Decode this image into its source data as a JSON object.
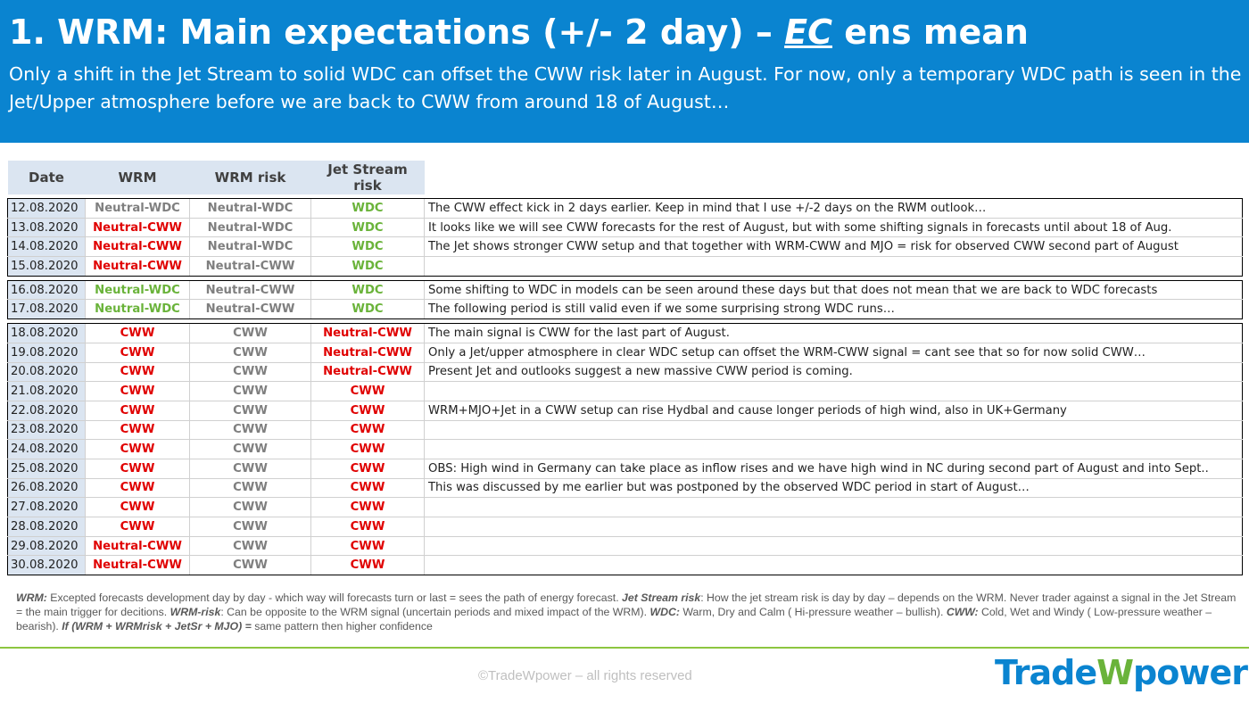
{
  "header": {
    "title": [
      "1. WRM: Main expectations (+/- 2 day) – ",
      "EC",
      " ens mean"
    ],
    "subtitle": "Only a shift in the Jet Stream to solid WDC can offset the CWW risk later in August. For now, only a temporary WDC path is seen in the Jet/Upper atmosphere before we are back to CWW from around 18 of August…"
  },
  "table": {
    "columns": [
      "Date",
      "WRM",
      "WRM risk",
      "Jet Stream risk"
    ],
    "colors": {
      "WDC": "#6ab33a",
      "Neutral-WDC": "#6ab33a",
      "CWW": "#e00000",
      "Neutral-CWW": "#e00000",
      "muted": "#7f7f7f"
    },
    "rows": [
      {
        "date": "12.08.2020",
        "wrm": "Neutral-WDC",
        "wrm_color": "#7f7f7f",
        "wrm_risk": "Neutral-WDC",
        "jet": "WDC",
        "comment": "The CWW effect kick in 2 days earlier. Keep in mind that I use +/-2 days on the RWM outlook…"
      },
      {
        "date": "13.08.2020",
        "wrm": "Neutral-CWW",
        "wrm_risk": "Neutral-WDC",
        "jet": "WDC",
        "comment": "It looks like we will see CWW forecasts for the rest of August, but with some shifting signals in forecasts until about 18 of Aug."
      },
      {
        "date": "14.08.2020",
        "wrm": "Neutral-CWW",
        "wrm_risk": "Neutral-WDC",
        "jet": "WDC",
        "comment": "The Jet shows stronger CWW setup and that together with WRM-CWW and MJO = risk for observed CWW second part of August"
      },
      {
        "date": "15.08.2020",
        "wrm": "Neutral-CWW",
        "wrm_risk": "Neutral-CWW",
        "jet": "WDC"
      },
      {
        "date": "16.08.2020",
        "wrm": "Neutral-WDC",
        "wrm_risk": "Neutral-CWW",
        "jet": "WDC",
        "comment": "Some shifting to WDC in models can be seen around these days but that does not mean that we are back to WDC forecasts"
      },
      {
        "date": "17.08.2020",
        "wrm": "Neutral-WDC",
        "wrm_risk": "Neutral-CWW",
        "jet": "WDC",
        "comment": "The following period is still valid even if we some surprising strong WDC runs…"
      },
      {
        "date": "18.08.2020",
        "wrm": "CWW",
        "wrm_risk": "CWW",
        "jet": "Neutral-CWW",
        "comment": "The main signal is CWW for the last part of August."
      },
      {
        "date": "19.08.2020",
        "wrm": "CWW",
        "wrm_risk": "CWW",
        "jet": "Neutral-CWW",
        "comment": "Only a Jet/upper atmosphere in clear WDC setup can offset the WRM-CWW signal = cant see that so for now solid CWW…"
      },
      {
        "date": "20.08.2020",
        "wrm": "CWW",
        "wrm_risk": "CWW",
        "jet": "Neutral-CWW",
        "comment": "Present Jet and outlooks suggest a new massive CWW period is coming."
      },
      {
        "date": "21.08.2020",
        "wrm": "CWW",
        "wrm_risk": "CWW",
        "jet": "CWW"
      },
      {
        "date": "22.08.2020",
        "wrm": "CWW",
        "wrm_risk": "CWW",
        "jet": "CWW",
        "comment": "WRM+MJO+Jet in a CWW setup can rise Hydbal and cause longer periods of high wind, also in UK+Germany"
      },
      {
        "date": "23.08.2020",
        "wrm": "CWW",
        "wrm_risk": "CWW",
        "jet": "CWW"
      },
      {
        "date": "24.08.2020",
        "wrm": "CWW",
        "wrm_risk": "CWW",
        "jet": "CWW"
      },
      {
        "date": "25.08.2020",
        "wrm": "CWW",
        "wrm_risk": "CWW",
        "jet": "CWW",
        "comment": "OBS: High wind in Germany can take place as inflow rises and we have high wind in NC during second part of August and into Sept.."
      },
      {
        "date": "26.08.2020",
        "wrm": "CWW",
        "wrm_risk": "CWW",
        "jet": "CWW",
        "comment": "This was discussed by me earlier but was postponed by the observed WDC period in start of August…"
      },
      {
        "date": "27.08.2020",
        "wrm": "CWW",
        "wrm_risk": "CWW",
        "jet": "CWW"
      },
      {
        "date": "28.08.2020",
        "wrm": "CWW",
        "wrm_risk": "CWW",
        "jet": "CWW"
      },
      {
        "date": "29.08.2020",
        "wrm": "Neutral-CWW",
        "wrm_risk": "CWW",
        "jet": "CWW"
      },
      {
        "date": "30.08.2020",
        "wrm": "Neutral-CWW",
        "wrm_risk": "CWW",
        "jet": "CWW"
      }
    ]
  },
  "notes": [
    {
      "text": "WRM:",
      "em": true
    },
    {
      "text": " Excepted forecasts development day by day - which way will forecasts turn or last = sees the path of energy forecast.  "
    },
    {
      "text": "Jet Stream risk",
      "em": true
    },
    {
      "text": ": How the jet stream risk is day by day – depends on the WRM. Never trader against a signal in the Jet Stream = the main trigger for decitions. "
    },
    {
      "text": "WRM-risk",
      "em": true
    },
    {
      "text": ": Can be opposite to the WRM signal (uncertain periods and mixed impact of the WRM). "
    },
    {
      "text": "WDC:",
      "em": true
    },
    {
      "text": " Warm, Dry and Calm ( Hi-pressure weather – bullish). "
    },
    {
      "text": "CWW:",
      "em": true
    },
    {
      "text": " Cold, Wet and Windy ( Low-pressure weather – bearish). "
    },
    {
      "text": "If (WRM + WRMrisk + JetSr + MJO) =",
      "em": true
    },
    {
      "text": " same pattern then higher confidence"
    }
  ],
  "footer": {
    "copyright": "©TradeWpower – all rights reserved",
    "logo": [
      "Trade",
      "W",
      "power"
    ]
  }
}
